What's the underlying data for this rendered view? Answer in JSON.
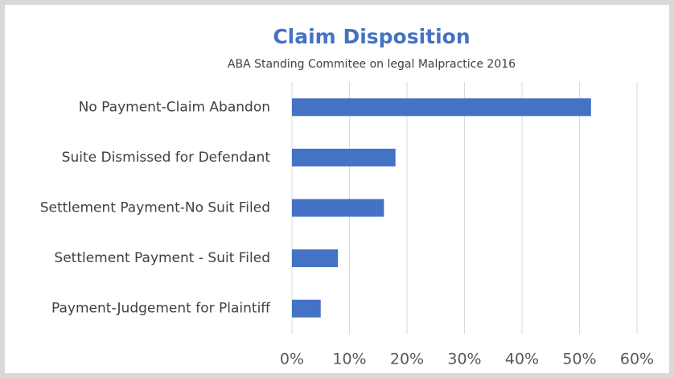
{
  "chart_data": {
    "type": "bar",
    "orientation": "horizontal",
    "title": "Claim Disposition",
    "subtitle": "ABA Standing Commitee on legal Malpractice 2016",
    "categories": [
      "No Payment-Claim Abandon",
      "Suite Dismissed for Defendant",
      "Settlement Payment-No Suit Filed",
      "Settlement Payment - Suit Filed",
      "Payment-Judgement for Plaintiff"
    ],
    "values": [
      52,
      18,
      16,
      8,
      5
    ],
    "color": "#4472c4",
    "xlim": [
      0,
      60
    ],
    "xticks": [
      {
        "value": 0,
        "label": "0%"
      },
      {
        "value": 10,
        "label": "10%"
      },
      {
        "value": 20,
        "label": "20%"
      },
      {
        "value": 30,
        "label": "30%"
      },
      {
        "value": 40,
        "label": "40%"
      },
      {
        "value": 50,
        "label": "50%"
      },
      {
        "value": 60,
        "label": "60%"
      }
    ],
    "grid": true
  }
}
